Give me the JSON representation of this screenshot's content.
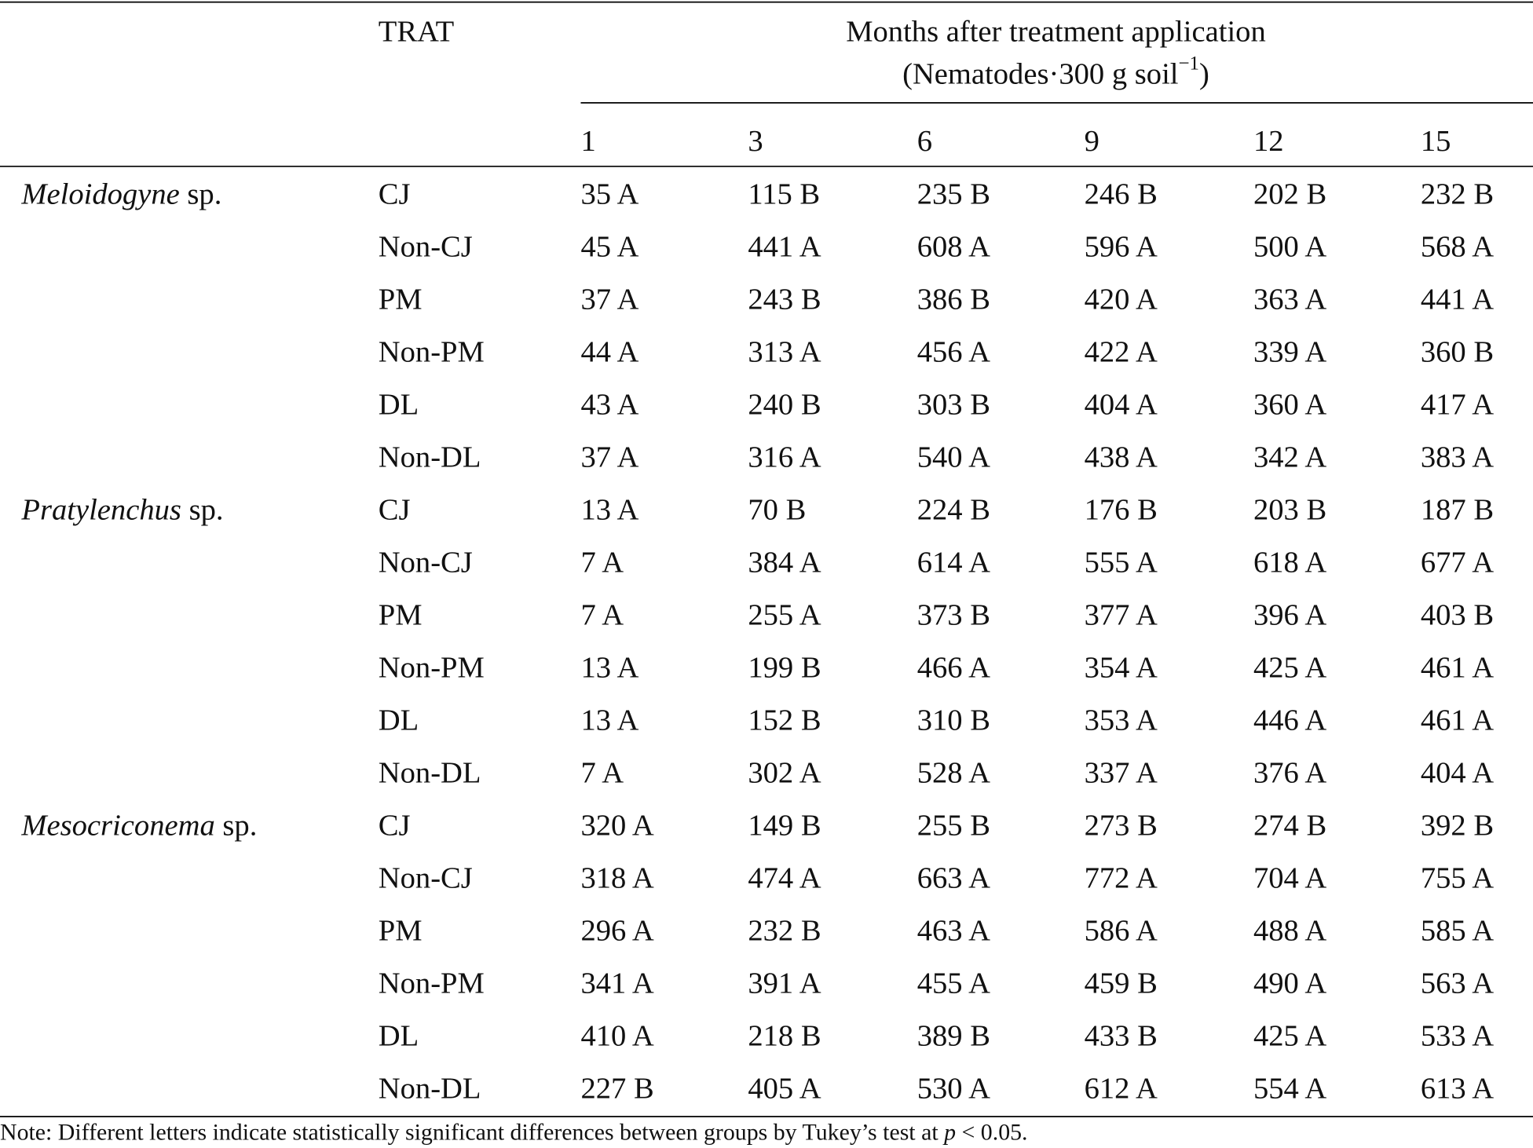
{
  "header": {
    "trat": "TRAT",
    "months_title": "Months after treatment application",
    "units": {
      "open": "(Nematodes·300 g soil",
      "superscript": "−1",
      "close": ")"
    },
    "columns": [
      "1",
      "3",
      "6",
      "9",
      "12",
      "15"
    ]
  },
  "groups": [
    {
      "genus": "Meloidogyne",
      "suffix": "sp.",
      "rows": [
        {
          "trat": "CJ",
          "values": [
            "35 A",
            "115 B",
            "235 B",
            "246 B",
            "202 B",
            "232 B"
          ]
        },
        {
          "trat": "Non-CJ",
          "values": [
            "45 A",
            "441 A",
            "608 A",
            "596 A",
            "500 A",
            "568 A"
          ]
        },
        {
          "trat": "PM",
          "values": [
            "37 A",
            "243 B",
            "386 B",
            "420 A",
            "363 A",
            "441 A"
          ]
        },
        {
          "trat": "Non-PM",
          "values": [
            "44 A",
            "313 A",
            "456 A",
            "422 A",
            "339 A",
            "360 B"
          ]
        },
        {
          "trat": "DL",
          "values": [
            "43 A",
            "240 B",
            "303 B",
            "404 A",
            "360 A",
            "417 A"
          ]
        },
        {
          "trat": "Non-DL",
          "values": [
            "37 A",
            "316 A",
            "540 A",
            "438 A",
            "342 A",
            "383 A"
          ]
        }
      ]
    },
    {
      "genus": "Pratylenchus",
      "suffix": "sp.",
      "rows": [
        {
          "trat": "CJ",
          "values": [
            "13 A",
            "70 B",
            "224 B",
            "176 B",
            "203 B",
            "187 B"
          ]
        },
        {
          "trat": "Non-CJ",
          "values": [
            "7 A",
            "384 A",
            "614 A",
            "555 A",
            "618 A",
            "677 A"
          ]
        },
        {
          "trat": "PM",
          "values": [
            "7 A",
            "255 A",
            "373 B",
            "377 A",
            "396 A",
            "403 B"
          ]
        },
        {
          "trat": "Non-PM",
          "values": [
            "13 A",
            "199 B",
            "466 A",
            "354 A",
            "425 A",
            "461 A"
          ]
        },
        {
          "trat": "DL",
          "values": [
            "13 A",
            "152 B",
            "310 B",
            "353 A",
            "446 A",
            "461 A"
          ]
        },
        {
          "trat": "Non-DL",
          "values": [
            "7 A",
            "302 A",
            "528 A",
            "337 A",
            "376 A",
            "404 A"
          ]
        }
      ]
    },
    {
      "genus": "Mesocriconema",
      "suffix": "sp.",
      "rows": [
        {
          "trat": "CJ",
          "values": [
            "320 A",
            "149 B",
            "255 B",
            "273 B",
            "274 B",
            "392 B"
          ]
        },
        {
          "trat": "Non-CJ",
          "values": [
            "318 A",
            "474 A",
            "663 A",
            "772 A",
            "704 A",
            "755 A"
          ]
        },
        {
          "trat": "PM",
          "values": [
            "296 A",
            "232 B",
            "463 A",
            "586 A",
            "488 A",
            "585 A"
          ]
        },
        {
          "trat": "Non-PM",
          "values": [
            "341 A",
            "391 A",
            "455 A",
            "459 B",
            "490 A",
            "563 A"
          ]
        },
        {
          "trat": "DL",
          "values": [
            "410 A",
            "218 B",
            "389 B",
            "433 B",
            "425 A",
            "533 A"
          ]
        },
        {
          "trat": "Non-DL",
          "values": [
            "227 B",
            "405 A",
            "530 A",
            "612 A",
            "554 A",
            "613 A"
          ]
        }
      ]
    }
  ],
  "note": {
    "text": "Note: Different letters indicate statistically significant differences between groups by Tukey’s test at ",
    "p": "p",
    "tail": " < 0.05."
  }
}
